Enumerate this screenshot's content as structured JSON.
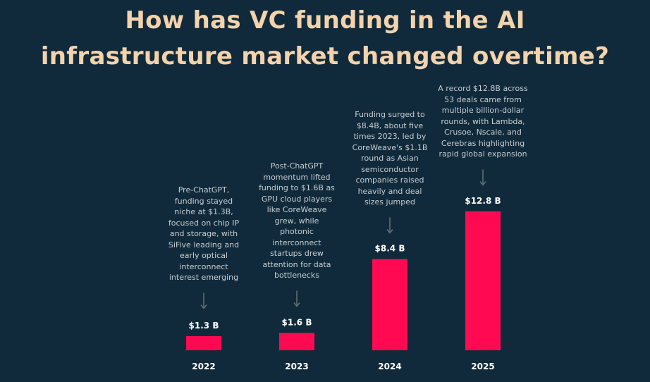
{
  "title": {
    "line1": "How has VC funding in the AI",
    "line2": "infrastructure market changed overtime?"
  },
  "colors": {
    "background": "#102a3b",
    "title": "#f2d3ad",
    "bar": "#ff0a52",
    "annotation_text": "#c7ced3",
    "arrow": "#5f6f6c",
    "labels": "#ffffff"
  },
  "chart_data": {
    "type": "bar",
    "categories": [
      "2022",
      "2023",
      "2024",
      "2025"
    ],
    "values": [
      1.3,
      1.6,
      8.4,
      12.8
    ],
    "value_labels": [
      "$1.3 B",
      "$1.6 B",
      "$8.4 B",
      "$12.8 B"
    ],
    "title": "How has VC funding in the AI infrastructure market changed overtime?",
    "xlabel": "",
    "ylabel": "",
    "axes_visible": false,
    "grid": false,
    "annotations": [
      "Pre-ChatGPT,\nfunding stayed\nniche at $1.3B,\nfocused on chip IP\nand storage, with\nSiFive leading and\nearly optical\ninterconnect\ninterest emerging",
      "Post-ChatGPT\nmomentum lifted\nfunding to $1.6B as\nGPU cloud players\nlike CoreWeave\ngrew, while\nphotonic\ninterconnect\nstartups drew\nattention for data\nbottlenecks",
      "Funding surged to\n$8.4B, about five\ntimes 2023, led by\nCoreWeave's $1.1B\nround as Asian\nsemiconductor\ncompanies raised\nheavily and deal\nsizes jumped",
      "A record $12.8B across\n53 deals came from\nmultiple billion-dollar\nrounds, with Lambda,\nCrusoe, Nscale, and\nCerebras highlighting\nrapid global expansion"
    ]
  }
}
